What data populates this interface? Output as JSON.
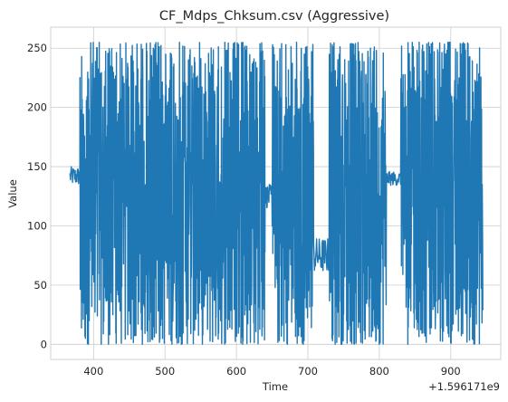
{
  "chart_data": {
    "type": "line",
    "title": "CF_Mdps_Chksum.csv (Aggressive)",
    "xlabel": "Time",
    "ylabel": "Value",
    "x_offset_label": "+1.596171e9",
    "xlim": [
      340,
      970
    ],
    "ylim": [
      -12.75,
      267.75
    ],
    "xticks": [
      400,
      500,
      600,
      700,
      800,
      900
    ],
    "yticks": [
      0,
      50,
      100,
      150,
      200,
      250
    ],
    "grid": true,
    "series": [
      {
        "color": "#1f77b4",
        "segments": [
          {
            "x_range": [
              367,
              381
            ],
            "behavior": "steady",
            "center": 142,
            "spread": 8
          },
          {
            "x_range": [
              381,
              640
            ],
            "behavior": "oscillating",
            "min": 0,
            "max": 255
          },
          {
            "x_range": [
              640,
              650
            ],
            "behavior": "steady",
            "center": 125,
            "spread": 10
          },
          {
            "x_range": [
              650,
              708
            ],
            "behavior": "oscillating",
            "min": 0,
            "max": 255
          },
          {
            "x_range": [
              708,
              730
            ],
            "behavior": "steady",
            "center": 75,
            "spread": 15
          },
          {
            "x_range": [
              730,
              810
            ],
            "behavior": "oscillating",
            "min": 0,
            "max": 255
          },
          {
            "x_range": [
              810,
              830
            ],
            "behavior": "steady",
            "center": 140,
            "spread": 6
          },
          {
            "x_range": [
              830,
              945
            ],
            "behavior": "oscillating",
            "min": 0,
            "max": 255
          }
        ]
      }
    ]
  }
}
